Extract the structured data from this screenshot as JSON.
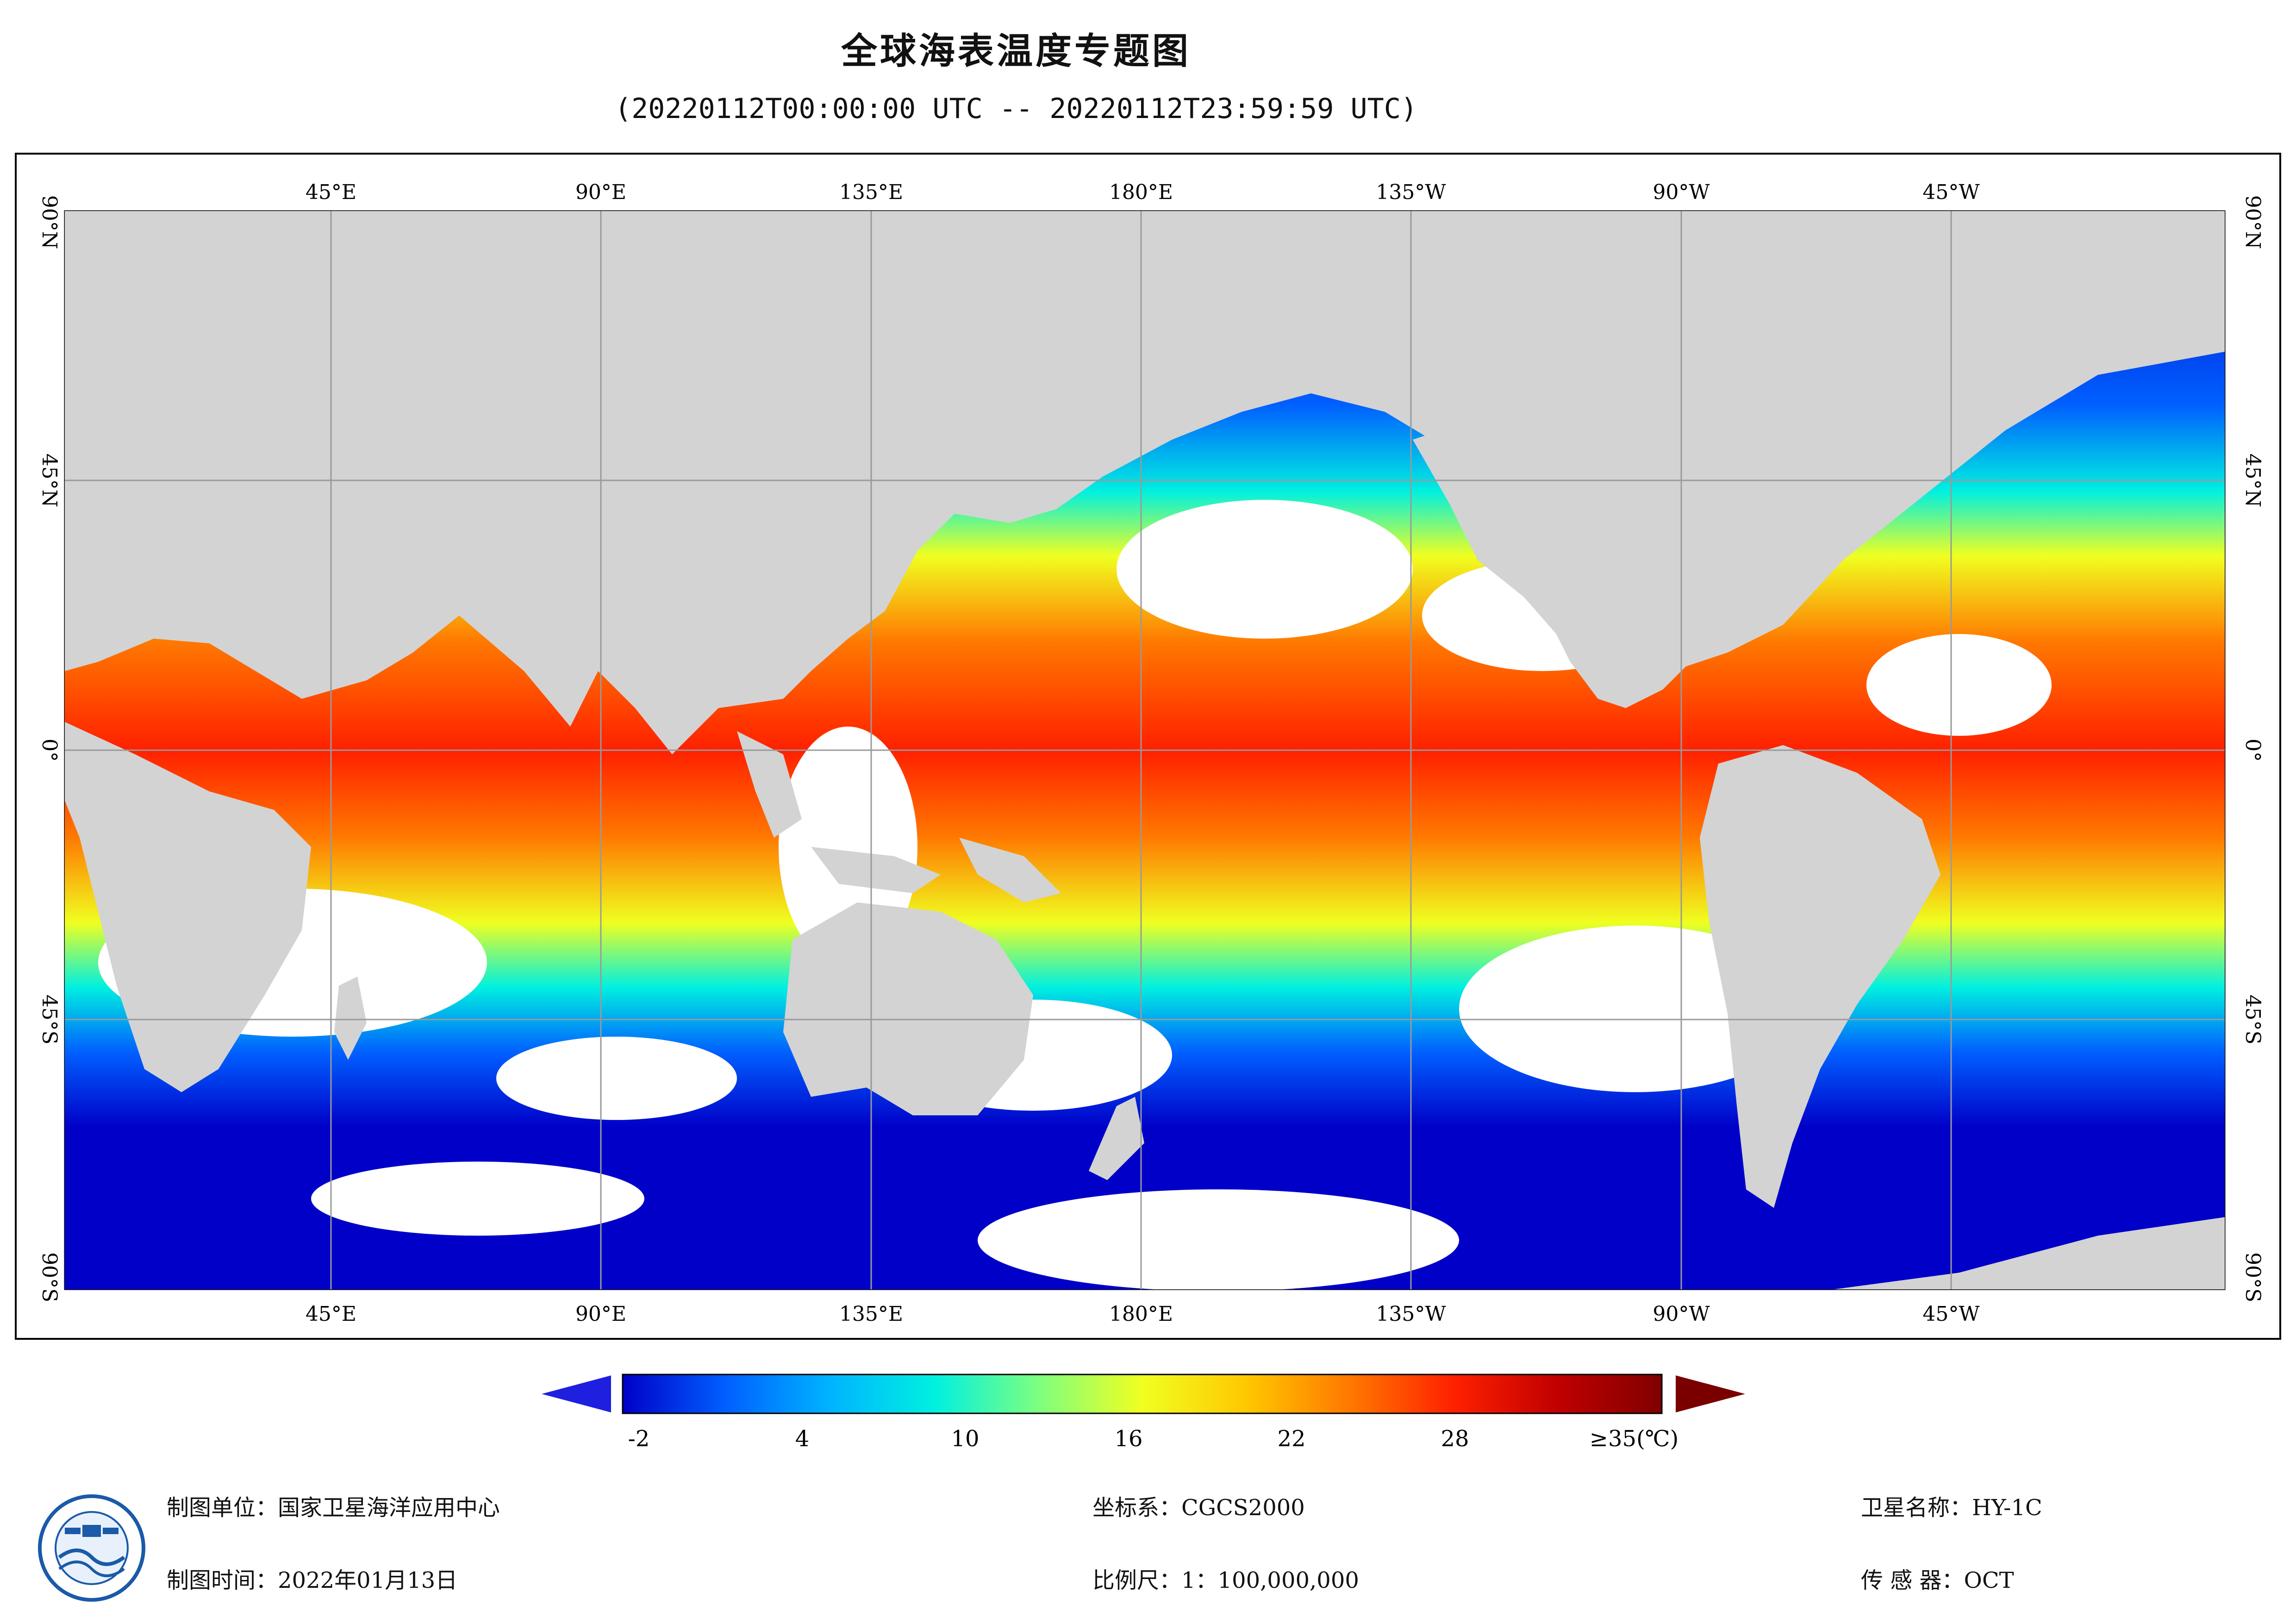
{
  "title": "全球海表温度专题图",
  "subtitle": "(20220112T00:00:00 UTC -- 20220112T23:59:59 UTC)",
  "map": {
    "lon_ticks": [
      "45°E",
      "90°E",
      "135°E",
      "180°E",
      "135°W",
      "90°W",
      "45°W"
    ],
    "lat_ticks": [
      "90°N",
      "45°N",
      "0°",
      "45°S",
      "90°S"
    ],
    "land_color": "#d3d3d3",
    "cloud_color": "#ffffff",
    "grid_color": "#9a9a9a"
  },
  "legend": {
    "unit": "(°C)",
    "tick_labels": [
      "-2",
      "4",
      "10",
      "16",
      "22",
      "28",
      "≥35(℃)"
    ],
    "min": -2,
    "max": 35,
    "colors": [
      "#0000c8",
      "#0060ff",
      "#00b4ff",
      "#00f0e0",
      "#7dff80",
      "#f0ff20",
      "#ffc800",
      "#ff7800",
      "#ff2000",
      "#c00000",
      "#800000"
    ],
    "under_color": "#1f1fe0",
    "over_color": "#7a0000"
  },
  "footer": {
    "unit_label": "制图单位：国家卫星海洋应用中心",
    "time_label": "制图时间：2022年01月13日",
    "crs_label": "坐标系：CGCS2000",
    "scale_label": "比例尺：1：100,000,000",
    "satellite_label": "卫星名称：HY-1C",
    "sensor_label": "传 感 器：OCT"
  }
}
